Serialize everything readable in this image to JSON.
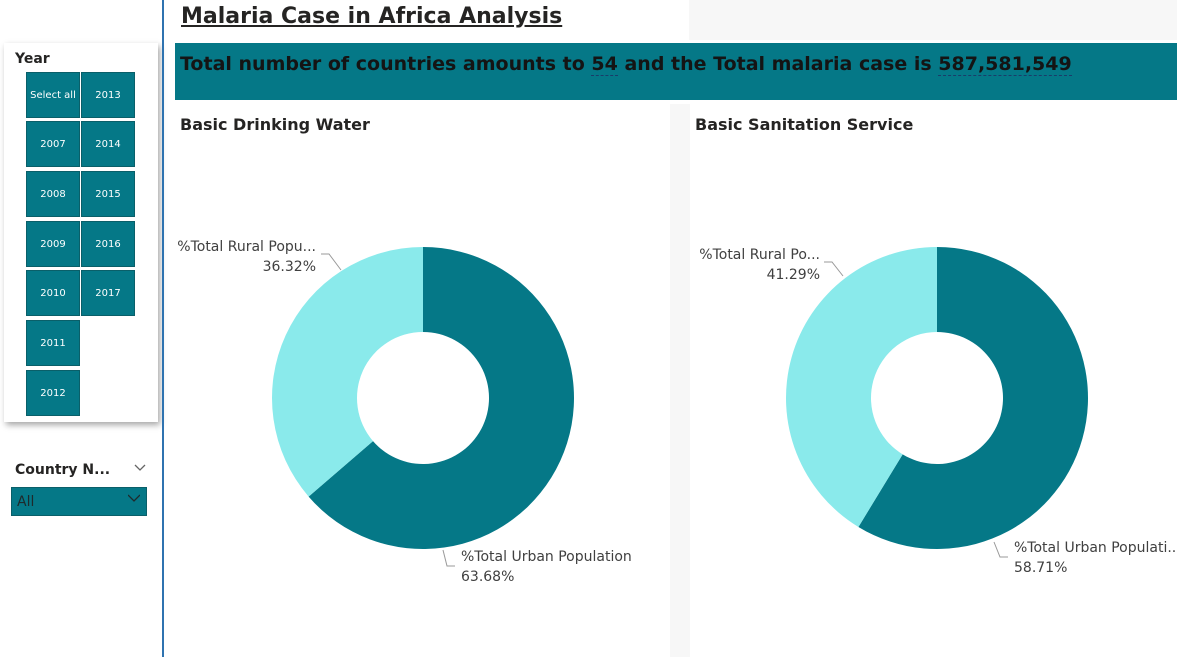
{
  "page": {
    "title": "Malaria Case in Africa Analysis"
  },
  "banner": {
    "prefix": "Total number of countries amounts to ",
    "countries": "54",
    "middle": " and the Total malaria case is ",
    "total_cases": "587,581,549"
  },
  "year_slicer": {
    "title": "Year",
    "items": [
      "Select all",
      "2007",
      "2008",
      "2009",
      "2010",
      "2011",
      "2012",
      "2013",
      "2014",
      "2015",
      "2016",
      "2017"
    ]
  },
  "country_slicer": {
    "title": "Country N...",
    "selected": "All"
  },
  "colors": {
    "accent": "#057887",
    "light": "#8AEAEB"
  },
  "chart_data": [
    {
      "type": "pie",
      "title": "Basic Drinking Water",
      "labels": [
        "%Total Rural Popu...",
        "%Total Urban Population"
      ],
      "values": [
        36.32,
        63.68
      ],
      "value_labels": [
        "36.32%",
        "63.68%"
      ],
      "colors": [
        "#8AEAEB",
        "#057887"
      ]
    },
    {
      "type": "pie",
      "title": "Basic Sanitation Service",
      "labels": [
        "%Total Rural Po...",
        "%Total Urban Populati..."
      ],
      "values": [
        41.29,
        58.71
      ],
      "value_labels": [
        "41.29%",
        "58.71%"
      ],
      "colors": [
        "#8AEAEB",
        "#057887"
      ]
    }
  ]
}
